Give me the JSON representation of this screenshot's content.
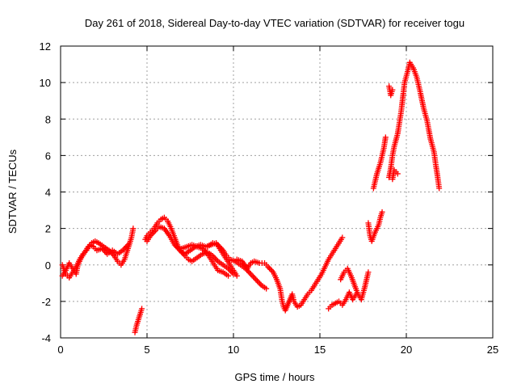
{
  "chart_data": {
    "type": "scatter",
    "title": "Day 261 of 2018, Sidereal Day-to-day VTEC variation (SDTVAR) for receiver togu",
    "xlabel": "GPS time / hours",
    "ylabel": "SDTVAR / TECUs",
    "xlim": [
      0,
      25
    ],
    "ylim": [
      -4,
      12
    ],
    "xticks": [
      0,
      5,
      10,
      15,
      20,
      25
    ],
    "yticks": [
      -4,
      -2,
      0,
      2,
      4,
      6,
      8,
      10,
      12
    ],
    "grid": true,
    "marker": "plus",
    "color": "#ff0000",
    "series": [
      {
        "name": "SDTVAR",
        "points": [
          [
            0.1,
            -0.6
          ],
          [
            0.3,
            -0.3
          ],
          [
            0.5,
            0.1
          ],
          [
            0.7,
            -0.2
          ],
          [
            0.9,
            -0.5
          ],
          [
            1.0,
            0.0
          ],
          [
            1.2,
            0.4
          ],
          [
            1.4,
            0.7
          ],
          [
            1.6,
            1.0
          ],
          [
            1.8,
            1.2
          ],
          [
            2.0,
            1.3
          ],
          [
            2.2,
            1.2
          ],
          [
            2.5,
            1.0
          ],
          [
            2.8,
            0.8
          ],
          [
            3.1,
            0.5
          ],
          [
            3.3,
            0.2
          ],
          [
            3.5,
            0.0
          ],
          [
            3.7,
            0.3
          ],
          [
            3.9,
            0.9
          ],
          [
            4.1,
            1.5
          ],
          [
            4.2,
            2.0
          ],
          [
            0.1,
            0.0
          ],
          [
            0.3,
            -0.5
          ],
          [
            0.5,
            -0.7
          ],
          [
            0.7,
            -0.4
          ],
          [
            0.9,
            -0.1
          ],
          [
            1.1,
            0.3
          ],
          [
            1.3,
            0.6
          ],
          [
            1.5,
            0.8
          ],
          [
            1.7,
            1.1
          ],
          [
            1.9,
            1.0
          ],
          [
            2.1,
            0.8
          ],
          [
            2.4,
            0.9
          ],
          [
            2.7,
            0.6
          ],
          [
            3.0,
            0.8
          ],
          [
            3.3,
            0.6
          ],
          [
            3.6,
            0.8
          ],
          [
            3.9,
            1.1
          ],
          [
            4.3,
            -3.7
          ],
          [
            4.4,
            -3.3
          ],
          [
            4.5,
            -3.0
          ],
          [
            4.6,
            -2.7
          ],
          [
            4.7,
            -2.4
          ],
          [
            4.9,
            1.4
          ],
          [
            5.0,
            1.6
          ],
          [
            5.2,
            1.8
          ],
          [
            5.4,
            2.0
          ],
          [
            5.6,
            2.3
          ],
          [
            5.8,
            2.5
          ],
          [
            6.0,
            2.6
          ],
          [
            6.2,
            2.4
          ],
          [
            6.4,
            2.0
          ],
          [
            6.6,
            1.5
          ],
          [
            6.8,
            1.0
          ],
          [
            7.0,
            0.7
          ],
          [
            7.2,
            0.6
          ],
          [
            7.5,
            0.8
          ],
          [
            7.8,
            1.0
          ],
          [
            8.1,
            1.1
          ],
          [
            8.4,
            1.0
          ],
          [
            8.7,
            1.1
          ],
          [
            9.0,
            1.2
          ],
          [
            9.2,
            0.9
          ],
          [
            9.4,
            0.6
          ],
          [
            9.6,
            0.3
          ],
          [
            9.8,
            0.0
          ],
          [
            10.0,
            -0.3
          ],
          [
            10.2,
            -0.6
          ],
          [
            5.0,
            1.3
          ],
          [
            5.2,
            1.6
          ],
          [
            5.5,
            1.9
          ],
          [
            5.7,
            2.1
          ],
          [
            6.0,
            2.0
          ],
          [
            6.3,
            1.6
          ],
          [
            6.6,
            1.1
          ],
          [
            6.9,
            0.8
          ],
          [
            7.2,
            0.5
          ],
          [
            7.4,
            0.3
          ],
          [
            7.6,
            0.2
          ],
          [
            7.9,
            0.4
          ],
          [
            8.2,
            0.6
          ],
          [
            8.5,
            0.7
          ],
          [
            8.8,
            0.5
          ],
          [
            9.1,
            0.2
          ],
          [
            9.4,
            0.0
          ],
          [
            9.7,
            -0.2
          ],
          [
            10.0,
            -0.5
          ],
          [
            7.0,
            0.9
          ],
          [
            7.3,
            1.0
          ],
          [
            7.6,
            1.1
          ],
          [
            7.9,
            1.0
          ],
          [
            8.2,
            0.9
          ],
          [
            8.5,
            0.6
          ],
          [
            8.7,
            0.3
          ],
          [
            8.9,
            0.0
          ],
          [
            9.1,
            -0.3
          ],
          [
            9.4,
            -0.4
          ],
          [
            9.7,
            -0.6
          ],
          [
            8.5,
            1.0
          ],
          [
            8.8,
            1.2
          ],
          [
            9.1,
            1.1
          ],
          [
            9.4,
            0.8
          ],
          [
            9.6,
            0.5
          ],
          [
            9.8,
            0.3
          ],
          [
            10.1,
            0.2
          ],
          [
            10.4,
            0.0
          ],
          [
            10.7,
            -0.2
          ],
          [
            11.0,
            -0.5
          ],
          [
            11.3,
            -0.8
          ],
          [
            11.6,
            -1.1
          ],
          [
            11.9,
            -1.3
          ],
          [
            10.2,
            0.3
          ],
          [
            10.5,
            0.2
          ],
          [
            10.8,
            -0.2
          ],
          [
            11.0,
            0.1
          ],
          [
            11.2,
            0.2
          ],
          [
            11.5,
            0.1
          ],
          [
            11.8,
            0.1
          ],
          [
            12.0,
            -0.1
          ],
          [
            12.3,
            -0.4
          ],
          [
            12.5,
            -0.8
          ],
          [
            12.7,
            -1.3
          ],
          [
            12.8,
            -1.9
          ],
          [
            12.9,
            -2.3
          ],
          [
            13.0,
            -2.5
          ],
          [
            13.4,
            -1.6
          ],
          [
            13.5,
            -2.0
          ],
          [
            13.7,
            -2.3
          ],
          [
            13.9,
            -2.2
          ],
          [
            14.1,
            -1.9
          ],
          [
            14.3,
            -1.6
          ],
          [
            14.5,
            -1.4
          ],
          [
            14.7,
            -1.1
          ],
          [
            14.9,
            -0.8
          ],
          [
            15.1,
            -0.5
          ],
          [
            15.3,
            -0.1
          ],
          [
            15.5,
            0.3
          ],
          [
            15.7,
            0.6
          ],
          [
            15.9,
            0.9
          ],
          [
            16.1,
            1.2
          ],
          [
            16.3,
            1.5
          ],
          [
            15.5,
            -2.4
          ],
          [
            15.7,
            -2.2
          ],
          [
            15.9,
            -2.1
          ],
          [
            16.1,
            -2.0
          ],
          [
            16.3,
            -2.2
          ],
          [
            16.5,
            -1.9
          ],
          [
            16.7,
            -1.5
          ],
          [
            16.9,
            -1.9
          ],
          [
            17.1,
            -1.6
          ],
          [
            16.2,
            -0.8
          ],
          [
            16.4,
            -0.4
          ],
          [
            16.6,
            -0.2
          ],
          [
            16.8,
            -0.6
          ],
          [
            17.0,
            -1.1
          ],
          [
            17.2,
            -1.6
          ],
          [
            17.4,
            -1.9
          ],
          [
            17.6,
            -1.2
          ],
          [
            17.7,
            -0.8
          ],
          [
            17.8,
            -0.4
          ],
          [
            17.8,
            2.3
          ],
          [
            17.9,
            1.6
          ],
          [
            18.0,
            1.3
          ],
          [
            18.2,
            1.8
          ],
          [
            18.4,
            2.2
          ],
          [
            18.5,
            2.6
          ],
          [
            18.6,
            2.9
          ],
          [
            18.1,
            4.2
          ],
          [
            18.3,
            5.0
          ],
          [
            18.5,
            5.6
          ],
          [
            18.7,
            6.4
          ],
          [
            18.8,
            7.0
          ],
          [
            19.0,
            4.8
          ],
          [
            19.1,
            5.3
          ],
          [
            19.2,
            6.0
          ],
          [
            19.3,
            6.5
          ],
          [
            19.5,
            7.2
          ],
          [
            19.6,
            7.8
          ],
          [
            19.7,
            8.4
          ],
          [
            19.8,
            9.2
          ],
          [
            19.9,
            10.0
          ],
          [
            20.1,
            10.7
          ],
          [
            20.2,
            11.1
          ],
          [
            20.4,
            10.8
          ],
          [
            20.6,
            10.3
          ],
          [
            20.8,
            9.5
          ],
          [
            21.0,
            8.6
          ],
          [
            21.2,
            7.9
          ],
          [
            21.4,
            6.9
          ],
          [
            21.6,
            6.2
          ],
          [
            21.7,
            5.5
          ],
          [
            21.8,
            4.9
          ],
          [
            21.9,
            4.2
          ],
          [
            19.0,
            9.8
          ],
          [
            19.1,
            9.3
          ],
          [
            19.2,
            9.6
          ],
          [
            19.2,
            4.7
          ],
          [
            19.3,
            5.2
          ],
          [
            19.5,
            5.0
          ]
        ]
      }
    ]
  }
}
